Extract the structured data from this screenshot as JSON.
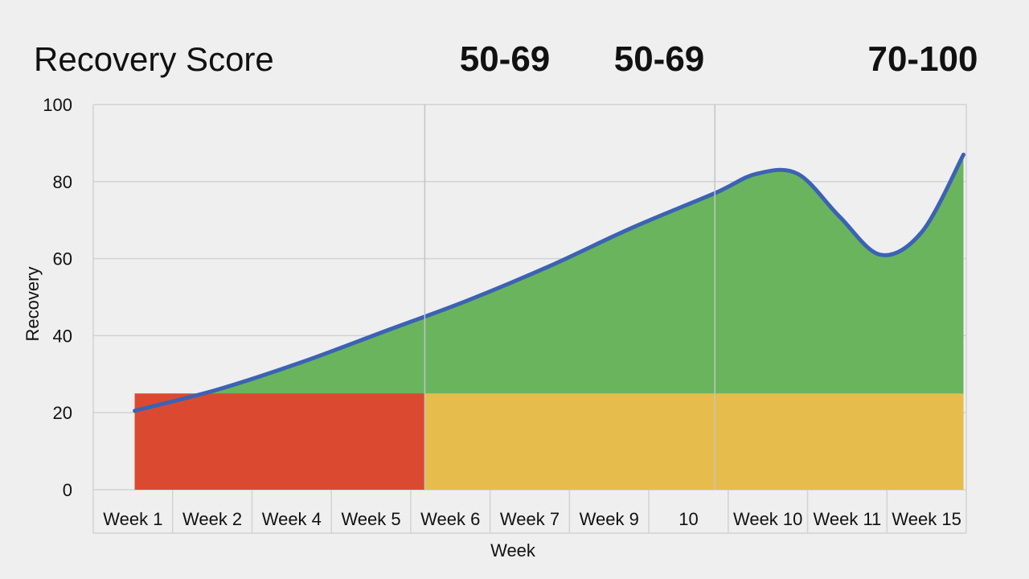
{
  "chart_data": {
    "type": "area",
    "title": "Recovery Score",
    "band_labels": [
      "50-69",
      "50-69",
      "70-100"
    ],
    "xlabel": "Week",
    "ylabel": "Recovery",
    "ylim": [
      0,
      100
    ],
    "yticks": [
      0,
      20,
      40,
      60,
      80,
      100
    ],
    "categories": [
      "Week 1",
      "Week 2",
      "Week 4",
      "Week 5",
      "Week 6",
      "Week 7",
      "Week 9",
      "10",
      "Week 10",
      "Week 11",
      "Week 15"
    ],
    "series": [
      {
        "name": "Recovery",
        "x": [
          0.5,
          1.5,
          2.5,
          3.5,
          4.5,
          5.5,
          6.5,
          7.5,
          8.0,
          8.5,
          9.0,
          9.5,
          10.0,
          10.5
        ],
        "values": [
          20.5,
          26,
          33,
          41,
          49,
          58,
          68,
          77,
          82,
          82,
          71,
          61,
          67,
          87
        ]
      }
    ],
    "zones": [
      {
        "name": "red",
        "x_start": 0.5,
        "x_end": 4.0,
        "y_max": 25
      },
      {
        "name": "yellow",
        "x_start": 4.0,
        "x_end": 10.5,
        "y_max": 25
      },
      {
        "name": "green",
        "x_start": 0.5,
        "x_end": 10.5,
        "y_min": 25
      }
    ],
    "dividers": [
      4.0,
      7.5
    ],
    "grid": true,
    "colors": {
      "line": "#3c62b4",
      "green": "#6ab45e",
      "red": "#db4a30",
      "yellow": "#e6bd4c",
      "grid": "#d2d2d2",
      "divider": "#c4c4c4"
    }
  }
}
